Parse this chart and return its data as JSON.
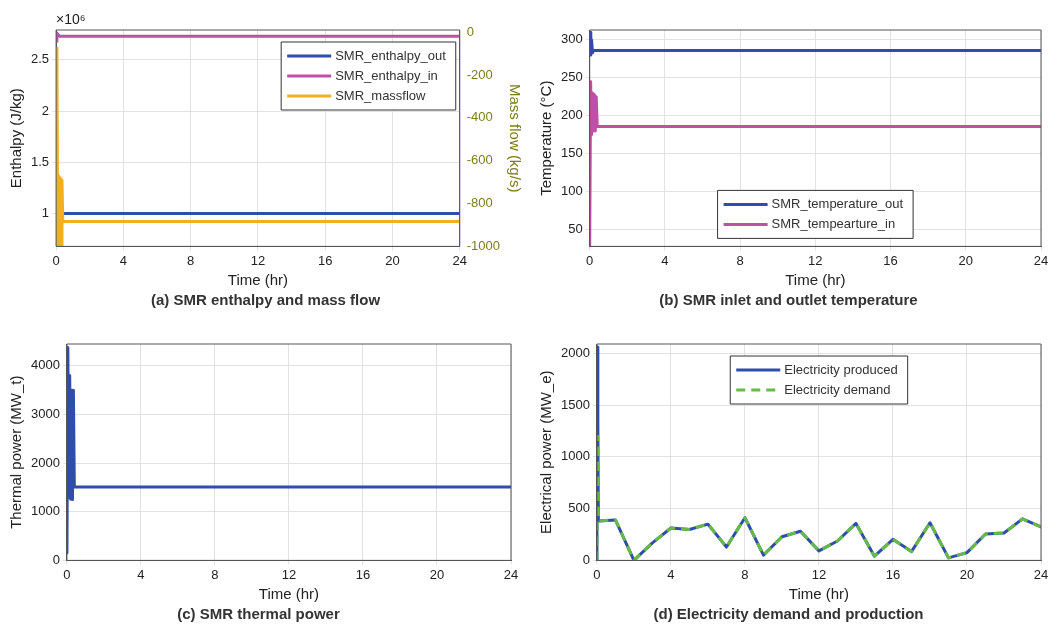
{
  "chart_data": [
    {
      "type": "line",
      "title": "(a) SMR enthalpy and mass flow",
      "xlabel": "Time (hr)",
      "ylabel": "Enthalpy (J/kg)",
      "y2label": "Mass flow (kg/s)",
      "annotations": [
        "×10⁶"
      ],
      "xlim": [
        0,
        24
      ],
      "xticks": [
        0,
        4,
        8,
        12,
        16,
        20,
        24
      ],
      "ylim": [
        0.68,
        2.79
      ],
      "yticks": [
        1,
        1.5,
        2,
        2.5
      ],
      "y2lim": [
        -1000,
        10
      ],
      "y2ticks": [
        -1000,
        -800,
        -600,
        -400,
        -200,
        0
      ],
      "grid": true,
      "legend": "top right",
      "series": [
        {
          "name": "SMR_enthalpy_out",
          "color": "#2e4ea8",
          "x": [
            0.4,
            24
          ],
          "values": [
            1.0,
            1.0
          ]
        },
        {
          "name": "SMR_enthalpy_in",
          "color": "#c04fa8",
          "x": [
            0,
            0.05,
            0.2,
            24
          ],
          "values": [
            2.68,
            2.76,
            2.73,
            2.73
          ]
        },
        {
          "name": "SMR_massflow",
          "color": "#f0b11e",
          "axis": "y2",
          "x": [
            0,
            0.05,
            0.1,
            0.15,
            0.2,
            0.25,
            0.3,
            0.35,
            0.4,
            24
          ],
          "values": [
            -1000,
            -74,
            -1000,
            -670,
            -1000,
            -680,
            -1000,
            -690,
            -884,
            -884
          ]
        }
      ]
    },
    {
      "type": "line",
      "title": "(b) SMR inlet and outlet temperature",
      "xlabel": "Time (hr)",
      "ylabel": "Temperature (°C)",
      "xlim": [
        0,
        24
      ],
      "xticks": [
        0,
        4,
        8,
        12,
        16,
        20,
        24
      ],
      "ylim": [
        28,
        313
      ],
      "yticks": [
        50,
        100,
        150,
        200,
        250,
        300
      ],
      "grid": true,
      "legend": "bottom",
      "series": [
        {
          "name": "SMR_temperature_out",
          "color": "#2e4ea8",
          "x": [
            0,
            0.03,
            0.06,
            0.1,
            0.15,
            0.2,
            24
          ],
          "values": [
            282,
            310,
            280,
            300,
            283,
            286,
            286
          ]
        },
        {
          "name": "SMR_tempearture_in",
          "color": "#c04fa8",
          "x": [
            0,
            0.05,
            0.1,
            0.15,
            0.2,
            0.25,
            0.3,
            0.35,
            0.4,
            24
          ],
          "values": [
            28,
            245,
            175,
            230,
            180,
            228,
            180,
            225,
            186,
            186
          ]
        }
      ]
    },
    {
      "type": "line",
      "title": "(c) SMR thermal power",
      "xlabel": "Time (hr)",
      "ylabel": "Thermal power (MW_t)",
      "xlim": [
        0,
        24
      ],
      "xticks": [
        0,
        4,
        8,
        12,
        16,
        20,
        24
      ],
      "ylim": [
        0,
        4450
      ],
      "yticks": [
        0,
        1000,
        2000,
        3000,
        4000
      ],
      "grid": true,
      "series": [
        {
          "color": "#2e4ea8",
          "x": [
            0,
            0.05,
            0.1,
            0.15,
            0.2,
            0.25,
            0.3,
            0.35,
            0.4,
            24
          ],
          "values": [
            150,
            4380,
            1300,
            3800,
            1260,
            3500,
            1250,
            3500,
            1510,
            1510
          ]
        }
      ]
    },
    {
      "type": "line",
      "title": "(d) Electricity demand and production",
      "xlabel": "Time (hr)",
      "ylabel": "Electrical power (MW_e)",
      "xlim": [
        0,
        24
      ],
      "xticks": [
        0,
        4,
        8,
        12,
        16,
        20,
        24
      ],
      "ylim": [
        0,
        2090
      ],
      "yticks": [
        0,
        500,
        1000,
        1500,
        2000
      ],
      "grid": true,
      "legend": "top",
      "series": [
        {
          "name": "Electricity produced",
          "color": "#2e4ea8",
          "x": [
            0,
            0.02,
            0.05,
            0.08,
            1,
            2,
            3,
            4,
            5,
            6,
            7,
            8,
            9,
            10,
            11,
            12,
            13,
            14,
            15,
            16,
            17,
            18,
            19,
            20,
            21,
            22,
            23,
            24
          ],
          "values": [
            0,
            2060,
            1350,
            381,
            391,
            0,
            170,
            313,
            299,
            350,
            129,
            412,
            51,
            228,
            282,
            92,
            187,
            357,
            41,
            204,
            85,
            364,
            24,
            75,
            255,
            265,
            401,
            323
          ]
        },
        {
          "name": "Electricity demand",
          "color": "#66bb44",
          "line_style": "dashed",
          "x": [
            0,
            0.04,
            0.08,
            1,
            2,
            3,
            4,
            5,
            6,
            7,
            8,
            9,
            10,
            11,
            12,
            13,
            14,
            15,
            16,
            17,
            18,
            19,
            20,
            21,
            22,
            23,
            24
          ],
          "values": [
            0,
            1200,
            381,
            391,
            0,
            170,
            313,
            299,
            350,
            129,
            412,
            51,
            228,
            282,
            92,
            187,
            357,
            41,
            204,
            85,
            364,
            24,
            75,
            255,
            265,
            401,
            323
          ]
        }
      ]
    }
  ]
}
